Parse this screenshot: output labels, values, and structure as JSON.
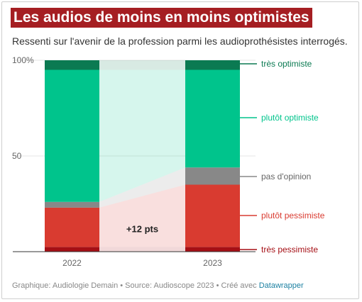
{
  "header": {
    "title": "Les audios de moins en moins optimistes",
    "subtitle": "Ressenti sur l'avenir de la profession parmi les audioprothésistes interrogés."
  },
  "footer": {
    "text": "Graphique: Audiologie Demain • Source: Audioscope 2023 • Créé avec ",
    "link": "Datawrapper"
  },
  "chart_data": {
    "type": "bar",
    "stacked": true,
    "categories": [
      "2022",
      "2023"
    ],
    "ylim": [
      0,
      100
    ],
    "yticks": [
      "100%",
      "50"
    ],
    "grid": true,
    "legend_position": "right",
    "series": [
      {
        "name": "très pessimiste",
        "values": [
          2.5,
          2.5
        ],
        "color": "#a50f15",
        "label_color": "#a50f15"
      },
      {
        "name": "plutôt pessimiste",
        "values": [
          20.5,
          32.5
        ],
        "color": "#d93b30",
        "label_color": "#d93b30"
      },
      {
        "name": "pas d'opinion",
        "values": [
          3,
          9
        ],
        "color": "#888888",
        "label_color": "#666666"
      },
      {
        "name": "plutôt optimiste",
        "values": [
          69,
          51
        ],
        "color": "#00c48c",
        "label_color": "#00c48c"
      },
      {
        "name": "très optimiste",
        "values": [
          5,
          5
        ],
        "color": "#0b7a52",
        "label_color": "#0b7a52"
      }
    ],
    "annotation": "+12 pts"
  }
}
